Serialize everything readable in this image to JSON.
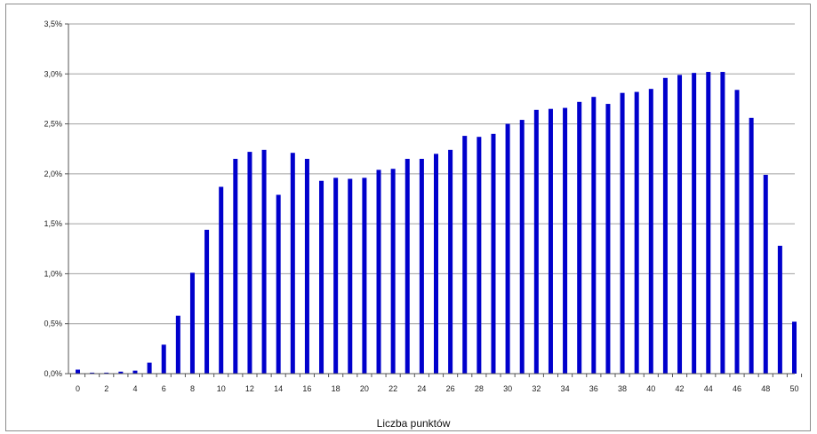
{
  "chart_data": {
    "type": "bar",
    "title": "",
    "xlabel": "Liczba punktów",
    "ylabel": "",
    "ylim": [
      0,
      3.5
    ],
    "y_ticks": [
      0,
      0.5,
      1,
      1.5,
      2,
      2.5,
      3,
      3.5
    ],
    "y_tick_labels": [
      "0,0%",
      "0,5%",
      "1,0%",
      "1,5%",
      "2,0%",
      "2,5%",
      "3,0%",
      "3,5%"
    ],
    "x_tick_labels": [
      "0",
      "2",
      "4",
      "6",
      "8",
      "10",
      "12",
      "14",
      "16",
      "18",
      "20",
      "22",
      "24",
      "26",
      "28",
      "30",
      "32",
      "34",
      "36",
      "38",
      "40",
      "42",
      "44",
      "46",
      "48",
      "50"
    ],
    "categories": [
      0,
      1,
      2,
      3,
      4,
      5,
      6,
      7,
      8,
      9,
      10,
      11,
      12,
      13,
      14,
      15,
      16,
      17,
      18,
      19,
      20,
      21,
      22,
      23,
      24,
      25,
      26,
      27,
      28,
      29,
      30,
      31,
      32,
      33,
      34,
      35,
      36,
      37,
      38,
      39,
      40,
      41,
      42,
      43,
      44,
      45,
      46,
      47,
      48,
      49,
      50
    ],
    "values": [
      0.04,
      0.01,
      0.01,
      0.02,
      0.03,
      0.11,
      0.29,
      0.58,
      1.01,
      1.44,
      1.87,
      2.15,
      2.22,
      2.24,
      1.79,
      2.21,
      2.15,
      1.93,
      1.96,
      1.95,
      1.96,
      2.04,
      2.05,
      2.15,
      2.15,
      2.2,
      2.24,
      2.38,
      2.37,
      2.4,
      2.5,
      2.54,
      2.64,
      2.65,
      2.66,
      2.72,
      2.77,
      2.7,
      2.81,
      2.82,
      2.85,
      2.96,
      2.99,
      3.01,
      3.02,
      3.02,
      2.84,
      2.56,
      1.99,
      1.28,
      0.52
    ],
    "grid": true,
    "legend": "none",
    "bar_color": "#0000cc"
  }
}
